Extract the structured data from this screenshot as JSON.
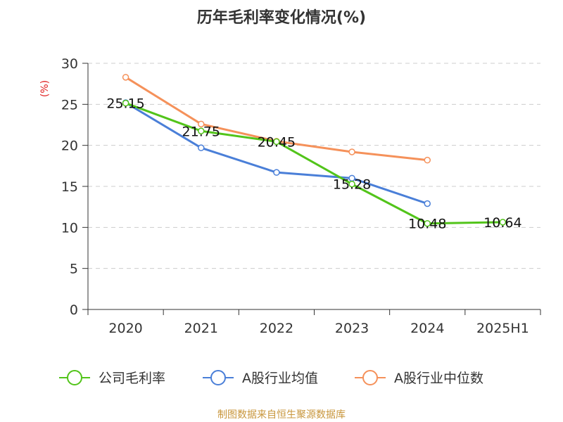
{
  "chart_data": {
    "type": "line",
    "title": "历年毛利率变化情况(%)",
    "ylabel": "(%)",
    "xlabel": "",
    "categories": [
      "2020",
      "2021",
      "2022",
      "2023",
      "2024",
      "2025H1"
    ],
    "ylim": [
      0,
      30
    ],
    "yticks": [
      0,
      5,
      10,
      15,
      20,
      25,
      30
    ],
    "grid": true,
    "legend_position": "bottom",
    "series": [
      {
        "name": "公司毛利率",
        "color": "#52c41a",
        "labeled": true,
        "values": [
          25.15,
          21.75,
          20.45,
          15.28,
          10.48,
          10.64
        ]
      },
      {
        "name": "A股行业均值",
        "color": "#4a7fd8",
        "labeled": false,
        "values": [
          25.2,
          19.7,
          16.7,
          16.0,
          12.9,
          null
        ]
      },
      {
        "name": "A股行业中位数",
        "color": "#f5915a",
        "labeled": false,
        "values": [
          28.3,
          22.6,
          20.5,
          19.2,
          18.2,
          null
        ]
      }
    ]
  },
  "source": "制图数据来自恒生聚源数据库"
}
